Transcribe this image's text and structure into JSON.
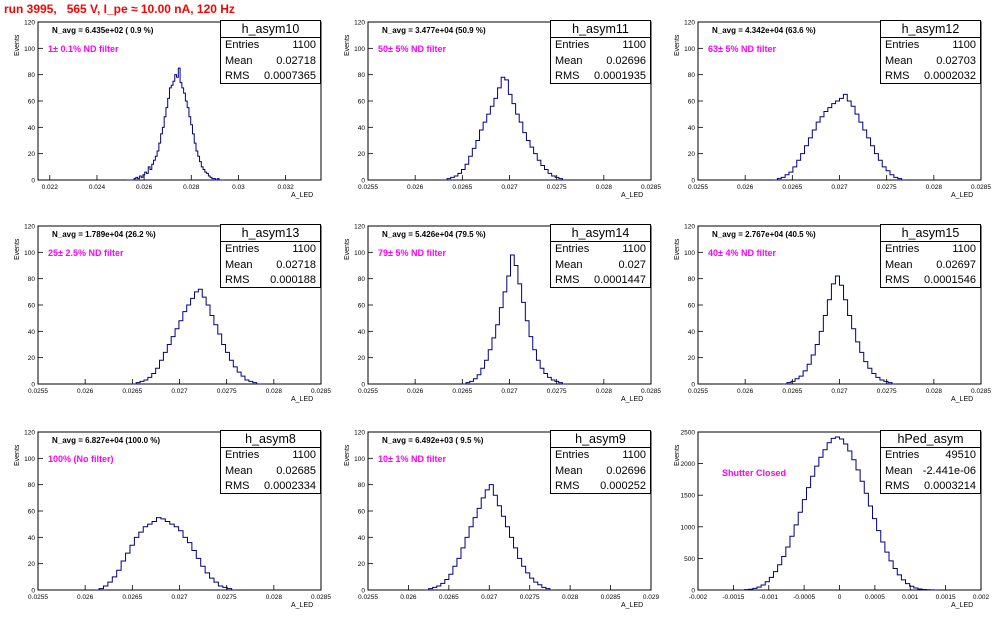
{
  "header": {
    "title": "run 3995,   565 V, I_pe ≈ 10.00 nA, 120 Hz"
  },
  "colors": {
    "title": "#ff0000",
    "annotation": "#ff00ff",
    "histogram": "#000080"
  },
  "chart_data": [
    {
      "type": "bar",
      "name": "h_asym10",
      "stats": {
        "entries": "1100",
        "mean": "0.02718",
        "rms": "0.0007365"
      },
      "annotations": [
        "N_avg = 6.435e+02 ( 0.9 %)",
        "1± 0.1% ND filter"
      ],
      "xlabel": "A_LED",
      "ylabel": "Events",
      "xlim": [
        0.0215,
        0.0335
      ],
      "ylim": [
        0,
        120
      ],
      "xticks": [
        "0.022",
        "0.024",
        "0.026",
        "0.028",
        "0.03",
        "0.032"
      ],
      "yticks": [
        "0",
        "20",
        "40",
        "60",
        "80",
        "100",
        "120"
      ],
      "bin_edges": [
        0.0252,
        0.0294
      ],
      "values": [
        0,
        0,
        0,
        0,
        0,
        1,
        2,
        1,
        3,
        2,
        4,
        6,
        5,
        10,
        8,
        12,
        15,
        18,
        22,
        28,
        35,
        40,
        48,
        55,
        62,
        70,
        72,
        75,
        80,
        78,
        85,
        74,
        70,
        66,
        60,
        55,
        48,
        42,
        35,
        28,
        22,
        18,
        14,
        10,
        8,
        6,
        5,
        3,
        2,
        1,
        1,
        0,
        1,
        0,
        0,
        0
      ]
    },
    {
      "type": "bar",
      "name": "h_asym11",
      "stats": {
        "entries": "1100",
        "mean": "0.02696",
        "rms": "0.0001935"
      },
      "annotations": [
        "N_avg = 3.477e+04 (50.9 %)",
        "50± 5% ND filter"
      ],
      "xlabel": "A_LED",
      "ylabel": "Events",
      "xlim": [
        0.0255,
        0.0285
      ],
      "ylim": [
        0,
        120
      ],
      "xticks": [
        "0.0255",
        "0.026",
        "0.0265",
        "0.027",
        "0.0275",
        "0.028",
        "0.0285"
      ],
      "yticks": [
        "0",
        "20",
        "40",
        "60",
        "80",
        "100",
        "120"
      ],
      "bin_edges": [
        0.0263,
        0.0276
      ],
      "values": [
        0,
        1,
        2,
        3,
        5,
        8,
        12,
        18,
        24,
        30,
        38,
        44,
        50,
        56,
        62,
        70,
        78,
        76,
        65,
        58,
        50,
        44,
        36,
        30,
        25,
        20,
        15,
        11,
        8,
        5,
        3,
        2,
        1,
        0
      ]
    },
    {
      "type": "bar",
      "name": "h_asym12",
      "stats": {
        "entries": "1100",
        "mean": "0.02703",
        "rms": "0.0002032"
      },
      "annotations": [
        "N_avg = 4.342e+04 (63.6 %)",
        "63± 5% ND filter"
      ],
      "xlabel": "A_LED",
      "ylabel": "Events",
      "xlim": [
        0.0255,
        0.0285
      ],
      "ylim": [
        0,
        120
      ],
      "xticks": [
        "0.0255",
        "0.026",
        "0.0265",
        "0.027",
        "0.0275",
        "0.028",
        "0.0285"
      ],
      "yticks": [
        "0",
        "20",
        "40",
        "60",
        "80",
        "100",
        "120"
      ],
      "bin_edges": [
        0.0263,
        0.0277
      ],
      "values": [
        0,
        1,
        2,
        4,
        6,
        10,
        15,
        20,
        26,
        32,
        38,
        44,
        48,
        52,
        55,
        58,
        60,
        62,
        65,
        60,
        56,
        50,
        44,
        38,
        32,
        26,
        20,
        15,
        10,
        7,
        4,
        2,
        1,
        0
      ]
    },
    {
      "type": "bar",
      "name": "h_asym13",
      "stats": {
        "entries": "1100",
        "mean": "0.02718",
        "rms": "0.000188"
      },
      "annotations": [
        "N_avg = 1.789e+04 (26.2 %)",
        "25± 2.5% ND filter"
      ],
      "xlabel": "A_LED",
      "ylabel": "Events",
      "xlim": [
        0.0255,
        0.0285
      ],
      "ylim": [
        0,
        120
      ],
      "xticks": [
        "0.0255",
        "0.026",
        "0.0265",
        "0.027",
        "0.0275",
        "0.028",
        "0.0285"
      ],
      "yticks": [
        "0",
        "20",
        "40",
        "60",
        "80",
        "100",
        "120"
      ],
      "bin_edges": [
        0.0265,
        0.0279
      ],
      "values": [
        0,
        1,
        2,
        3,
        5,
        8,
        12,
        18,
        24,
        30,
        36,
        42,
        48,
        55,
        60,
        65,
        70,
        72,
        66,
        60,
        52,
        45,
        38,
        30,
        24,
        18,
        13,
        9,
        6,
        3,
        2,
        1,
        0,
        0
      ]
    },
    {
      "type": "bar",
      "name": "h_asym14",
      "stats": {
        "entries": "1100",
        "mean": "0.027",
        "rms": "0.0001447"
      },
      "annotations": [
        "N_avg = 5.426e+04 (79.5 %)",
        "79± 5% ND filter"
      ],
      "xlabel": "A_LED",
      "ylabel": "Events",
      "xlim": [
        0.0255,
        0.0285
      ],
      "ylim": [
        0,
        120
      ],
      "xticks": [
        "0.0255",
        "0.026",
        "0.0265",
        "0.027",
        "0.0275",
        "0.028",
        "0.0285"
      ],
      "yticks": [
        "0",
        "20",
        "40",
        "60",
        "80",
        "100",
        "120"
      ],
      "bin_edges": [
        0.0265,
        0.0276
      ],
      "values": [
        0,
        1,
        2,
        4,
        7,
        12,
        18,
        26,
        35,
        45,
        58,
        70,
        82,
        98,
        90,
        76,
        62,
        48,
        36,
        26,
        18,
        12,
        8,
        5,
        3,
        2,
        1,
        0
      ]
    },
    {
      "type": "bar",
      "name": "h_asym15",
      "stats": {
        "entries": "1100",
        "mean": "0.02697",
        "rms": "0.0001546"
      },
      "annotations": [
        "N_avg = 2.767e+04 (40.5 %)",
        "40± 4% ND filter"
      ],
      "xlabel": "A_LED",
      "ylabel": "Events",
      "xlim": [
        0.0255,
        0.0285
      ],
      "ylim": [
        0,
        120
      ],
      "xticks": [
        "0.0255",
        "0.026",
        "0.0265",
        "0.027",
        "0.0275",
        "0.028",
        "0.0285"
      ],
      "yticks": [
        "0",
        "20",
        "40",
        "60",
        "80",
        "100",
        "120"
      ],
      "bin_edges": [
        0.0264,
        0.0276
      ],
      "values": [
        0,
        1,
        2,
        4,
        6,
        10,
        15,
        22,
        30,
        40,
        52,
        64,
        76,
        82,
        75,
        64,
        52,
        42,
        32,
        24,
        17,
        12,
        8,
        5,
        3,
        2,
        1,
        0
      ]
    },
    {
      "type": "bar",
      "name": "h_asym8",
      "stats": {
        "entries": "1100",
        "mean": "0.02685",
        "rms": "0.0002334"
      },
      "annotations": [
        "N_avg = 6.827e+04 (100.0 %)",
        "100% (No filter)"
      ],
      "xlabel": "A_LED",
      "ylabel": "Events",
      "xlim": [
        0.0255,
        0.0285
      ],
      "ylim": [
        0,
        120
      ],
      "xticks": [
        "0.0255",
        "0.026",
        "0.0265",
        "0.027",
        "0.0275",
        "0.028",
        "0.0285"
      ],
      "yticks": [
        "0",
        "20",
        "40",
        "60",
        "80",
        "100",
        "120"
      ],
      "bin_edges": [
        0.0261,
        0.0276
      ],
      "values": [
        0,
        1,
        3,
        6,
        10,
        15,
        22,
        28,
        34,
        40,
        44,
        48,
        50,
        52,
        55,
        54,
        52,
        50,
        48,
        45,
        40,
        36,
        30,
        24,
        18,
        13,
        9,
        6,
        3,
        2,
        1,
        0
      ]
    },
    {
      "type": "bar",
      "name": "h_asym9",
      "stats": {
        "entries": "1100",
        "mean": "0.02696",
        "rms": "0.000252"
      },
      "annotations": [
        "N_avg = 6.492e+03 ( 9.5 %)",
        "10± 1% ND filter"
      ],
      "xlabel": "A_LED",
      "ylabel": "Events",
      "xlim": [
        0.0255,
        0.029
      ],
      "ylim": [
        0,
        120
      ],
      "xticks": [
        "0.0255",
        "0.026",
        "0.0265",
        "0.027",
        "0.0275",
        "0.028",
        "0.0285",
        "0.029"
      ],
      "yticks": [
        "0",
        "20",
        "40",
        "60",
        "80",
        "100",
        "120"
      ],
      "bin_edges": [
        0.0262,
        0.0278
      ],
      "values": [
        0,
        1,
        2,
        3,
        5,
        8,
        12,
        18,
        24,
        32,
        40,
        48,
        55,
        62,
        70,
        76,
        80,
        72,
        64,
        56,
        48,
        40,
        32,
        24,
        18,
        13,
        9,
        6,
        4,
        2,
        1,
        0
      ]
    },
    {
      "type": "bar",
      "name": "hPed_asym",
      "stats": {
        "entries": "49510",
        "mean": "-2.441e-06",
        "rms": "0.0003214"
      },
      "annotations": [
        "Shutter Closed"
      ],
      "xlabel": "A_LED",
      "ylabel": "Events",
      "xlim": [
        -0.002,
        0.002
      ],
      "ylim": [
        0,
        2500
      ],
      "xticks": [
        "-0.002",
        "-0.0015",
        "-0.001",
        "-0.0005",
        "0",
        "0.0005",
        "0.001",
        "0.0015",
        "0.002"
      ],
      "yticks": [
        "0",
        "500",
        "1000",
        "1500",
        "2000",
        "2500"
      ],
      "bin_edges": [
        -0.0014,
        0.0014
      ],
      "values": [
        0,
        5,
        12,
        25,
        45,
        80,
        130,
        200,
        290,
        400,
        530,
        680,
        850,
        1030,
        1230,
        1430,
        1620,
        1800,
        1960,
        2100,
        2220,
        2330,
        2400,
        2420,
        2390,
        2310,
        2200,
        2060,
        1900,
        1720,
        1530,
        1330,
        1130,
        940,
        760,
        600,
        460,
        340,
        240,
        160,
        100,
        60,
        32,
        16,
        7,
        3,
        1,
        0
      ]
    }
  ]
}
